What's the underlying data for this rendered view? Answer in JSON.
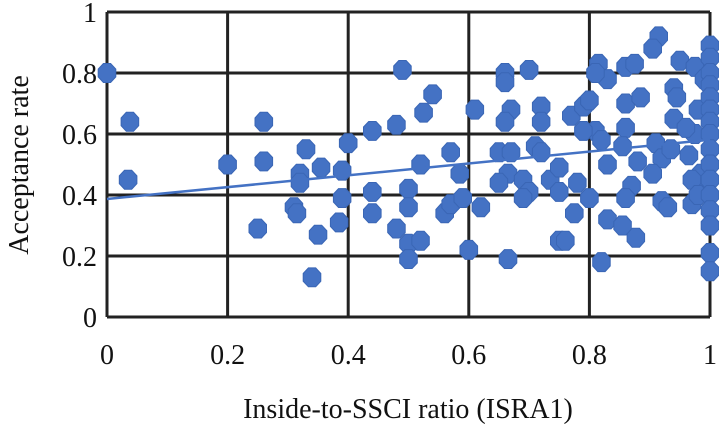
{
  "chart_data": {
    "type": "scatter",
    "title": "",
    "xlabel": "Inside-to-SSCI ratio (ISRA1)",
    "ylabel": "Acceptance rate",
    "xlim": [
      0,
      1
    ],
    "ylim": [
      0,
      1
    ],
    "xticks": [
      "0",
      "0.2",
      "0.4",
      "0.6",
      "0.8",
      "1"
    ],
    "yticks": [
      "0",
      "0.2",
      "0.4",
      "0.6",
      "0.8",
      "1"
    ],
    "xtick_values": [
      0,
      0.2,
      0.4,
      0.6,
      0.8,
      1
    ],
    "ytick_values": [
      0,
      0.2,
      0.4,
      0.6,
      0.8,
      1
    ],
    "grid": true,
    "legend": "none",
    "marker_color": "#4472C4",
    "trendline": {
      "type": "linear",
      "intercept": 0.387,
      "slope": 0.194,
      "color": "#4472C4"
    },
    "points": [
      [
        0,
        0.8
      ],
      [
        0.038,
        0.64
      ],
      [
        0.035,
        0.45
      ],
      [
        0.2,
        0.5
      ],
      [
        0.26,
        0.64
      ],
      [
        0.26,
        0.51
      ],
      [
        0.25,
        0.29
      ],
      [
        0.33,
        0.55
      ],
      [
        0.355,
        0.49
      ],
      [
        0.32,
        0.47
      ],
      [
        0.32,
        0.44
      ],
      [
        0.31,
        0.36
      ],
      [
        0.315,
        0.34
      ],
      [
        0.35,
        0.27
      ],
      [
        0.34,
        0.13
      ],
      [
        0.4,
        0.57
      ],
      [
        0.39,
        0.48
      ],
      [
        0.39,
        0.39
      ],
      [
        0.385,
        0.31
      ],
      [
        0.44,
        0.61
      ],
      [
        0.48,
        0.63
      ],
      [
        0.49,
        0.81
      ],
      [
        0.54,
        0.73
      ],
      [
        0.525,
        0.67
      ],
      [
        0.52,
        0.5
      ],
      [
        0.44,
        0.41
      ],
      [
        0.44,
        0.34
      ],
      [
        0.5,
        0.42
      ],
      [
        0.5,
        0.36
      ],
      [
        0.48,
        0.29
      ],
      [
        0.5,
        0.24
      ],
      [
        0.52,
        0.25
      ],
      [
        0.5,
        0.19
      ],
      [
        0.57,
        0.54
      ],
      [
        0.56,
        0.34
      ],
      [
        0.57,
        0.37
      ],
      [
        0.585,
        0.47
      ],
      [
        0.59,
        0.39
      ],
      [
        0.61,
        0.68
      ],
      [
        0.62,
        0.36
      ],
      [
        0.6,
        0.22
      ],
      [
        0.66,
        0.8
      ],
      [
        0.66,
        0.77
      ],
      [
        0.7,
        0.81
      ],
      [
        0.67,
        0.68
      ],
      [
        0.66,
        0.64
      ],
      [
        0.65,
        0.54
      ],
      [
        0.67,
        0.54
      ],
      [
        0.665,
        0.47
      ],
      [
        0.65,
        0.44
      ],
      [
        0.69,
        0.45
      ],
      [
        0.7,
        0.41
      ],
      [
        0.69,
        0.39
      ],
      [
        0.72,
        0.69
      ],
      [
        0.72,
        0.64
      ],
      [
        0.71,
        0.56
      ],
      [
        0.72,
        0.54
      ],
      [
        0.735,
        0.45
      ],
      [
        0.75,
        0.49
      ],
      [
        0.75,
        0.41
      ],
      [
        0.75,
        0.25
      ],
      [
        0.76,
        0.25
      ],
      [
        0.665,
        0.19
      ],
      [
        0.77,
        0.66
      ],
      [
        0.79,
        0.69
      ],
      [
        0.8,
        0.71
      ],
      [
        0.81,
        0.61
      ],
      [
        0.79,
        0.61
      ],
      [
        0.78,
        0.44
      ],
      [
        0.8,
        0.39
      ],
      [
        0.775,
        0.34
      ],
      [
        0.815,
        0.83
      ],
      [
        0.83,
        0.78
      ],
      [
        0.81,
        0.8
      ],
      [
        0.83,
        0.5
      ],
      [
        0.82,
        0.58
      ],
      [
        0.86,
        0.7
      ],
      [
        0.885,
        0.72
      ],
      [
        0.86,
        0.62
      ],
      [
        0.855,
        0.56
      ],
      [
        0.86,
        0.82
      ],
      [
        0.875,
        0.83
      ],
      [
        0.88,
        0.51
      ],
      [
        0.87,
        0.43
      ],
      [
        0.86,
        0.39
      ],
      [
        0.83,
        0.32
      ],
      [
        0.855,
        0.3
      ],
      [
        0.877,
        0.26
      ],
      [
        0.82,
        0.18
      ],
      [
        0.915,
        0.92
      ],
      [
        0.905,
        0.88
      ],
      [
        0.91,
        0.57
      ],
      [
        0.92,
        0.52
      ],
      [
        0.905,
        0.47
      ],
      [
        0.92,
        0.38
      ],
      [
        0.93,
        0.36
      ],
      [
        0.94,
        0.65
      ],
      [
        0.94,
        0.75
      ],
      [
        0.95,
        0.84
      ],
      [
        0.945,
        0.72
      ],
      [
        0.935,
        0.55
      ],
      [
        0.965,
        0.53
      ],
      [
        0.97,
        0.37
      ],
      [
        0.975,
        0.82
      ],
      [
        0.98,
        0.68
      ],
      [
        0.975,
        0.6
      ],
      [
        0.985,
        0.47
      ],
      [
        0.99,
        0.43
      ],
      [
        0.96,
        0.62
      ],
      [
        0.97,
        0.45
      ],
      [
        0.99,
        0.78
      ],
      [
        0.98,
        0.4
      ],
      [
        1,
        0.89
      ],
      [
        1,
        0.85
      ],
      [
        1,
        0.8
      ],
      [
        1,
        0.76
      ],
      [
        1,
        0.72
      ],
      [
        1,
        0.68
      ],
      [
        1,
        0.64
      ],
      [
        1,
        0.6
      ],
      [
        1,
        0.55
      ],
      [
        1,
        0.5
      ],
      [
        1,
        0.45
      ],
      [
        1,
        0.4
      ],
      [
        1,
        0.35
      ],
      [
        1,
        0.3
      ],
      [
        1,
        0.21
      ],
      [
        1,
        0.15
      ]
    ]
  }
}
